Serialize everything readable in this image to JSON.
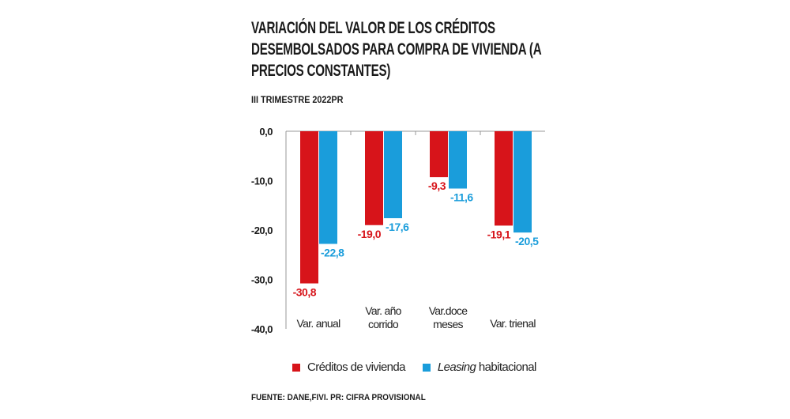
{
  "title": "VARIACIÓN DEL VALOR DE LOS CRÉDITOS DESEMBOLSADOS PARA COMPRA DE VIVIENDA (A PRECIOS CONSTANTES)",
  "subtitle": "III TRIMESTRE 2022PR",
  "source": "FUENTE: DANE,FIVI. PR: CIFRA PROVISIONAL",
  "chart_data": {
    "type": "bar",
    "categories": [
      [
        "Var. anual"
      ],
      [
        "Var. año",
        "corrido"
      ],
      [
        "Var.doce",
        "meses"
      ],
      [
        "Var. trienal"
      ]
    ],
    "series": [
      {
        "name": "Créditos de vivienda",
        "color": "#d7141a",
        "values": [
          -30.8,
          -19.0,
          -9.3,
          -19.1
        ],
        "labels": [
          "-30,8",
          "-19,0",
          "-9,3",
          "-19,1"
        ]
      },
      {
        "name": "Leasing habitacional",
        "name_italic": "Leasing",
        "name_rest": "habitacional",
        "color": "#1a9ddb",
        "values": [
          -22.8,
          -17.6,
          -11.6,
          -20.5
        ],
        "labels": [
          "-22,8",
          "-17,6",
          "-11,6",
          "-20,5"
        ]
      }
    ],
    "ylim": [
      -40,
      0
    ],
    "yticks": [
      0,
      -10,
      -20,
      -30,
      -40
    ],
    "ytick_labels": [
      "0,0",
      "-10,0",
      "-20,0",
      "-30,0",
      "-40,0"
    ],
    "grid": false,
    "legend": "bottom"
  }
}
